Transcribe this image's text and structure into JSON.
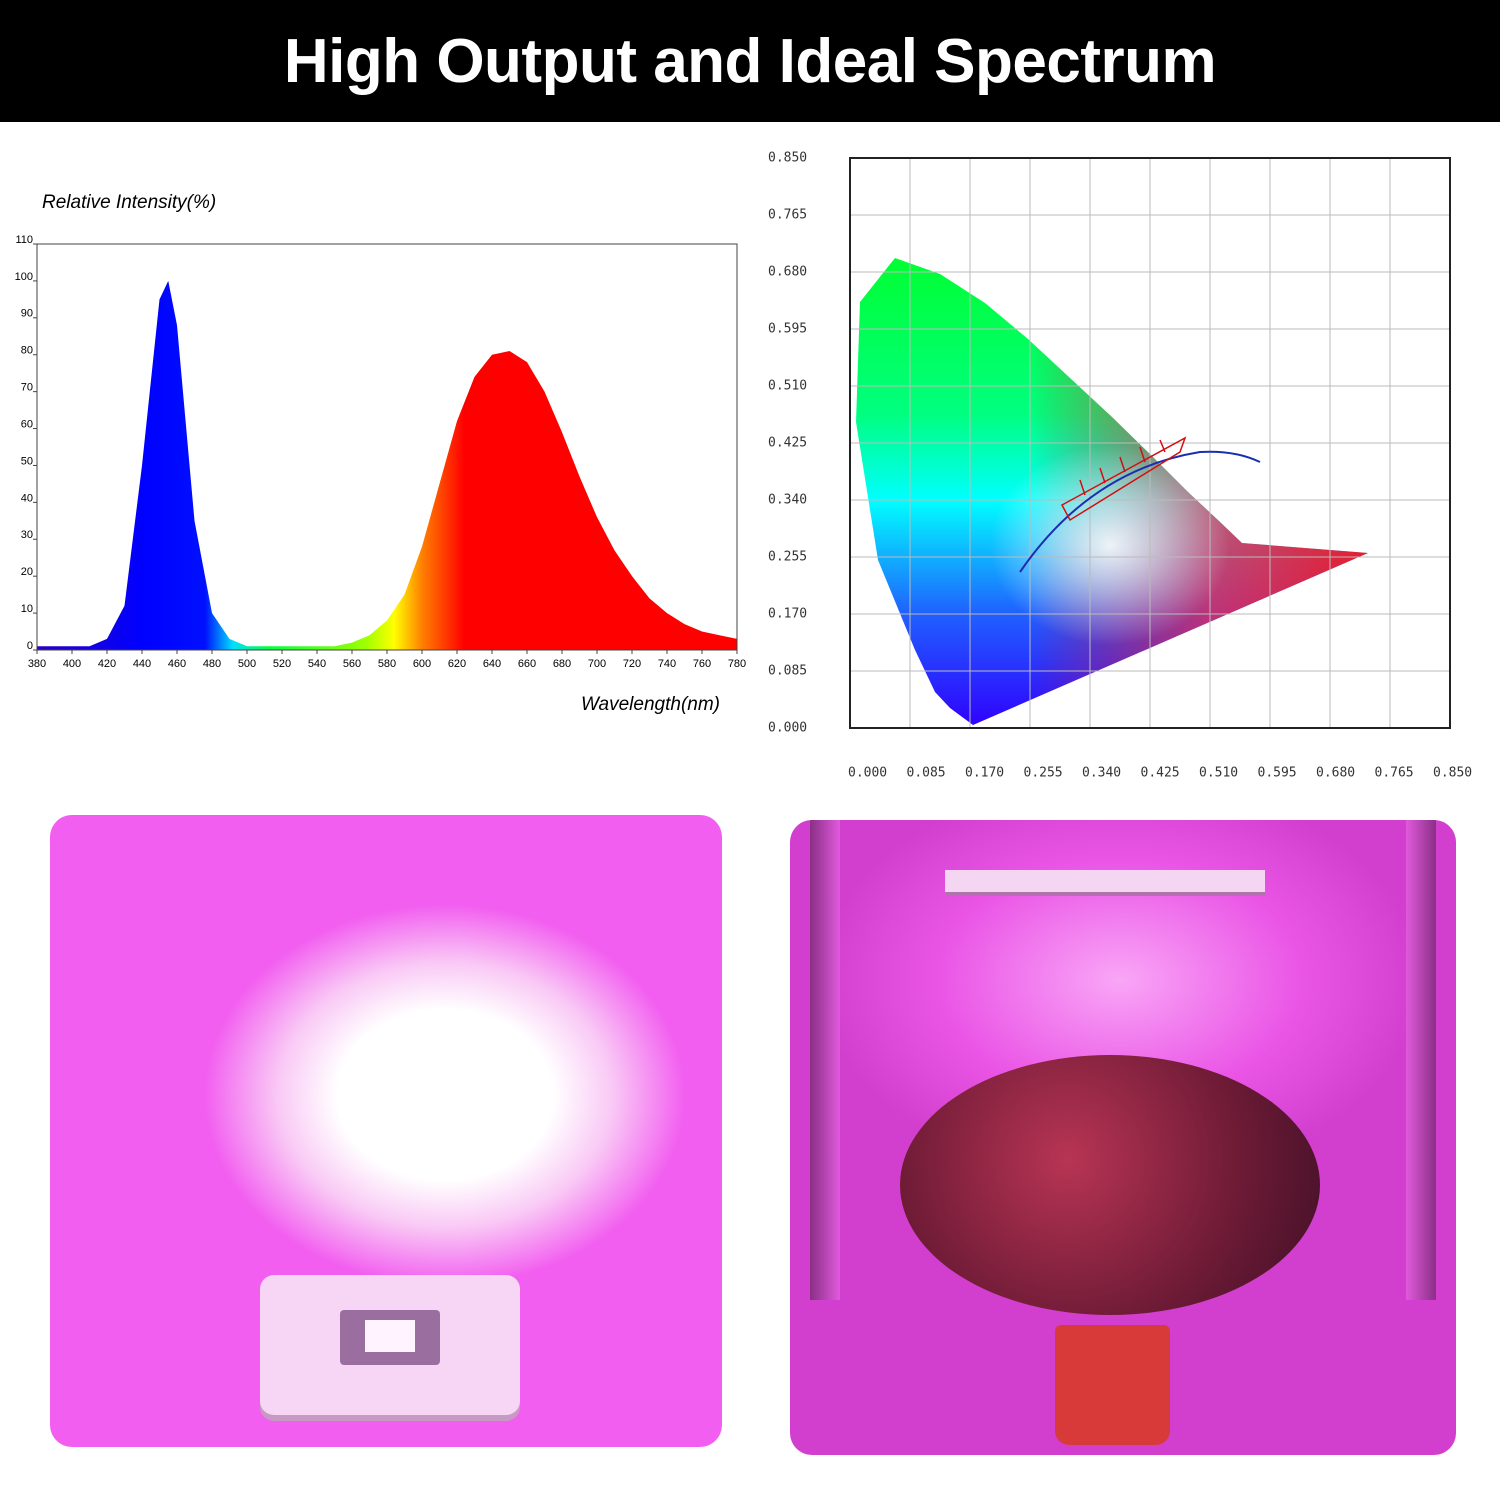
{
  "header": {
    "title": "High Output and Ideal Spectrum"
  },
  "chart_data": [
    {
      "type": "area",
      "y_label": "Relative Intensity(%)",
      "x_label": "Wavelength(nm)",
      "x": [
        380,
        390,
        400,
        410,
        420,
        430,
        440,
        450,
        455,
        460,
        470,
        480,
        490,
        500,
        510,
        520,
        530,
        540,
        550,
        560,
        570,
        580,
        590,
        600,
        610,
        620,
        630,
        640,
        650,
        660,
        670,
        680,
        690,
        700,
        710,
        720,
        730,
        740,
        750,
        760,
        770,
        780
      ],
      "values": [
        1,
        1,
        1,
        1,
        3,
        12,
        50,
        95,
        100,
        88,
        35,
        10,
        3,
        1,
        1,
        1,
        1,
        1,
        1,
        2,
        4,
        8,
        15,
        28,
        45,
        62,
        74,
        80,
        81,
        78,
        70,
        59,
        47,
        36,
        27,
        20,
        14,
        10,
        7,
        5,
        4,
        3
      ],
      "xlim": [
        380,
        780
      ],
      "ylim": [
        0,
        110
      ],
      "xticks": [
        380,
        400,
        420,
        440,
        460,
        480,
        500,
        520,
        540,
        560,
        580,
        600,
        620,
        640,
        660,
        680,
        700,
        720,
        740,
        760,
        780
      ],
      "yticks": [
        0,
        10,
        20,
        30,
        40,
        50,
        60,
        70,
        80,
        90,
        100,
        110
      ],
      "grid": false
    },
    {
      "type": "chromaticity",
      "xlim": [
        0,
        0.85
      ],
      "ylim": [
        0,
        0.85
      ],
      "xticks": [
        {
          "value": 0,
          "label": "0.000"
        },
        {
          "value": 0.085,
          "label": "0.085"
        },
        {
          "value": 0.17,
          "label": "0.170"
        },
        {
          "value": 0.255,
          "label": "0.255"
        },
        {
          "value": 0.34,
          "label": "0.340"
        },
        {
          "value": 0.425,
          "label": "0.425"
        },
        {
          "value": 0.51,
          "label": "0.510"
        },
        {
          "value": 0.595,
          "label": "0.595"
        },
        {
          "value": 0.68,
          "label": "0.680"
        },
        {
          "value": 0.765,
          "label": "0.765"
        },
        {
          "value": 0.85,
          "label": "0.850"
        }
      ],
      "yticks": [
        {
          "value": 0,
          "label": "0.000"
        },
        {
          "value": 0.085,
          "label": "0.085"
        },
        {
          "value": 0.17,
          "label": "0.170"
        },
        {
          "value": 0.255,
          "label": "0.255"
        },
        {
          "value": 0.34,
          "label": "0.340"
        },
        {
          "value": 0.425,
          "label": "0.425"
        },
        {
          "value": 0.51,
          "label": "0.510"
        },
        {
          "value": 0.595,
          "label": "0.595"
        },
        {
          "value": 0.68,
          "label": "0.680"
        },
        {
          "value": 0.765,
          "label": "0.765"
        },
        {
          "value": 0.85,
          "label": "0.850"
        }
      ],
      "grid": true
    }
  ]
}
